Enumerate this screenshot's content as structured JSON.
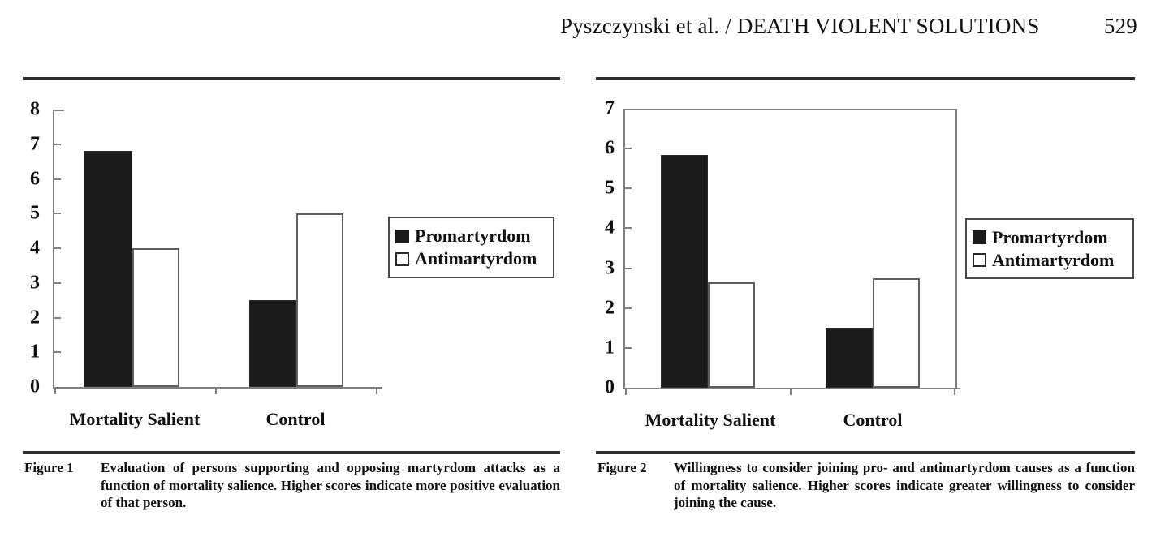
{
  "header": {
    "title": "Pyszczynski et al. / DEATH VIOLENT SOLUTIONS",
    "page_number": "529"
  },
  "chart_data": [
    {
      "type": "bar",
      "figure": "Figure 1",
      "categories": [
        "Mortality Salient",
        "Control"
      ],
      "series": [
        {
          "name": "Promartyrdom",
          "values": [
            6.8,
            2.5
          ]
        },
        {
          "name": "Antimartyrdom",
          "values": [
            4.0,
            5.0
          ]
        }
      ],
      "ylim": [
        0,
        8
      ],
      "yticks": [
        0,
        1,
        2,
        3,
        4,
        5,
        6,
        7,
        8
      ],
      "legend": [
        "Promartyrdom",
        "Antimartyrdom"
      ],
      "legend_position": "right-of-plot",
      "grid": false,
      "xlabel": "",
      "ylabel": ""
    },
    {
      "type": "bar",
      "figure": "Figure 2",
      "categories": [
        "Mortality Salient",
        "Control"
      ],
      "series": [
        {
          "name": "Promartyrdom",
          "values": [
            5.85,
            1.5
          ]
        },
        {
          "name": "Antimartyrdom",
          "values": [
            2.65,
            2.75
          ]
        }
      ],
      "ylim": [
        0,
        7
      ],
      "yticks": [
        0,
        1,
        2,
        3,
        4,
        5,
        6,
        7
      ],
      "legend": [
        "Promartyrdom",
        "Antimartyrdom"
      ],
      "legend_position": "right-of-plot",
      "grid": false,
      "xlabel": "",
      "ylabel": ""
    }
  ],
  "figures": [
    {
      "caption_label": "Figure 1",
      "caption_text": "Evaluation of persons supporting and opposing martyrdom attacks as a function of mortality salience. Higher scores indicate more positive evaluation of that person."
    },
    {
      "caption_label": "Figure 2",
      "caption_text": "Willingness to consider joining pro- and antimartyrdom causes as a function of mortality salience. Higher scores indicate greater willingness to consider joining the cause."
    }
  ],
  "colors": {
    "bar_black": "#1b1b1b",
    "bar_white": "#ffffff",
    "axis_gray": "#7f7f7f",
    "rule": "#2e2e2e",
    "text": "#111111"
  }
}
